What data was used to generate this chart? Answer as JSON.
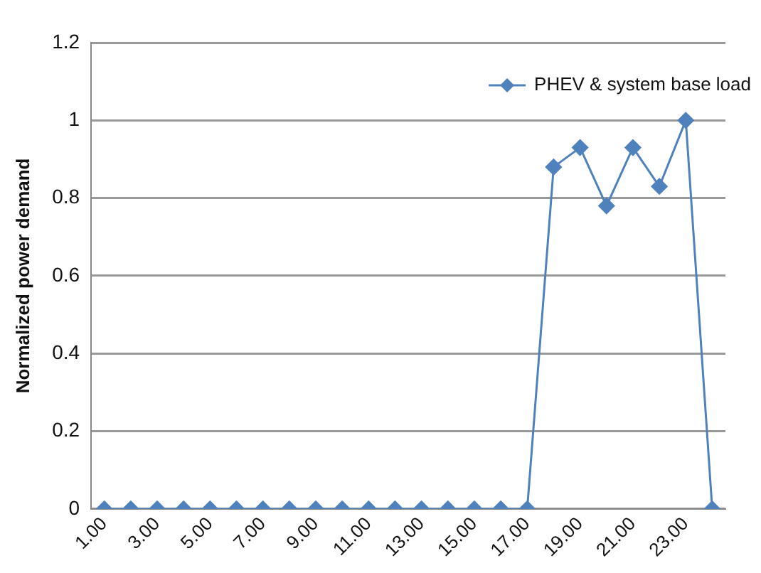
{
  "chart_data": {
    "type": "line",
    "ylabel": "Normalized power demand",
    "categories": [
      "1.00",
      null,
      "3.00",
      null,
      "5.00",
      null,
      "7.00",
      null,
      "9.00",
      null,
      "11.00",
      null,
      "13.00",
      null,
      "15.00",
      null,
      "17.00",
      null,
      "19.00",
      null,
      "21.00",
      null,
      "23.00",
      null
    ],
    "series": [
      {
        "name": "PHEV & system base load",
        "color": "#4f81bd",
        "values": [
          0,
          0,
          0,
          0,
          0,
          0,
          0,
          0,
          0,
          0,
          0,
          0,
          0,
          0,
          0,
          0,
          0,
          0.88,
          0.93,
          0.78,
          0.93,
          0.83,
          1,
          0
        ]
      }
    ],
    "ylim": [
      0,
      1.2
    ],
    "yticks": [
      0,
      0.2,
      0.4,
      0.6,
      0.8,
      1,
      1.2
    ],
    "grid": "y",
    "legend": "top right",
    "marker": "diamond",
    "line_style": "solid"
  }
}
